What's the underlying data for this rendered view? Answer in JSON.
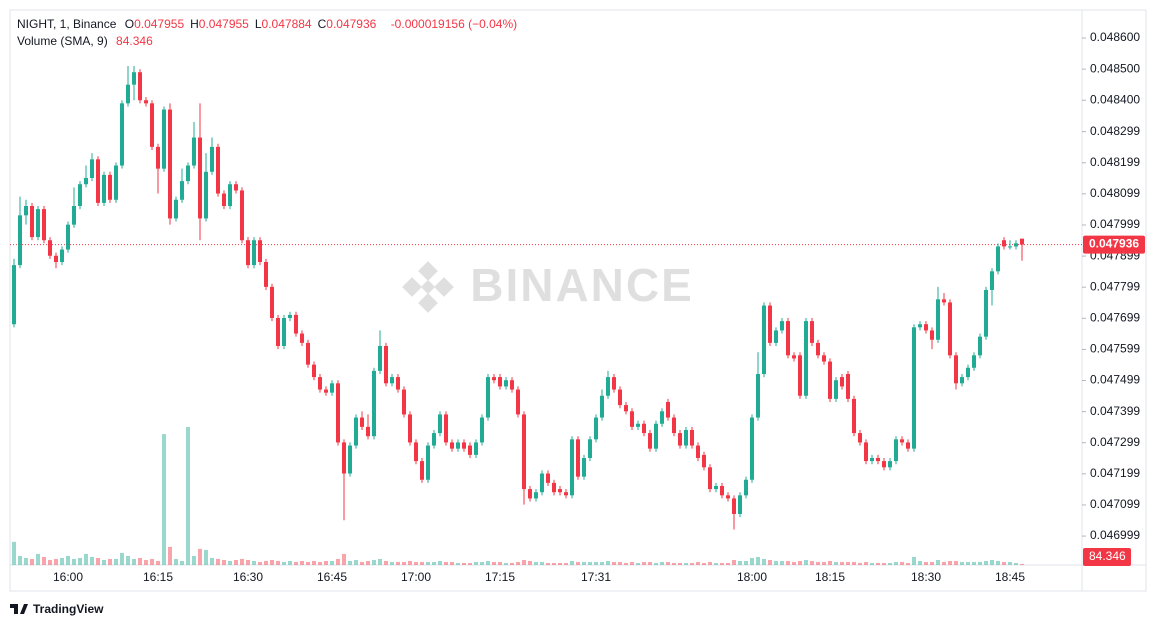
{
  "chart_data": {
    "type": "candlestick",
    "symbol": "NIGHT, 1, Binance",
    "ohlc_labels": [
      "O",
      "H",
      "L",
      "C"
    ],
    "change": "-0.000019156 (−0.04%)",
    "volume_label": "Volume (SMA, 9)",
    "volume_sma": 84.346,
    "watermark": "BINANCE",
    "brand": "TradingView",
    "up_color": "#22ab94",
    "down_color": "#f23645",
    "ylim": [
      0.046906,
      0.04869
    ],
    "yticks": [
      {
        "value": 0.0486,
        "label": "0.048600"
      },
      {
        "value": 0.0485,
        "label": "0.048500"
      },
      {
        "value": 0.0484,
        "label": "0.048400"
      },
      0.048299,
      0.048199,
      0.048099,
      0.047999,
      0.047899,
      0.047799,
      0.047699,
      0.047599,
      0.047499,
      0.047399,
      0.047299,
      0.047199,
      0.047099,
      0.046999
    ],
    "categories": [
      null,
      null,
      null,
      null,
      null,
      null,
      null,
      null,
      null,
      "16:00",
      null,
      null,
      null,
      null,
      null,
      null,
      null,
      null,
      null,
      null,
      null,
      null,
      null,
      null,
      "16:15",
      null,
      null,
      null,
      null,
      null,
      null,
      null,
      null,
      null,
      null,
      null,
      null,
      null,
      null,
      "16:30",
      null,
      null,
      null,
      null,
      null,
      null,
      null,
      null,
      null,
      null,
      null,
      null,
      null,
      "16:45",
      null,
      null,
      null,
      null,
      null,
      null,
      null,
      null,
      null,
      null,
      null,
      null,
      null,
      "17:00",
      null,
      null,
      null,
      null,
      null,
      null,
      null,
      null,
      null,
      null,
      null,
      null,
      null,
      "17:15",
      null,
      null,
      null,
      null,
      null,
      null,
      null,
      null,
      null,
      null,
      null,
      null,
      null,
      null,
      null,
      "17:31",
      null,
      null,
      null,
      null,
      null,
      null,
      null,
      null,
      null,
      null,
      null,
      null,
      null,
      null,
      null,
      null,
      null,
      null,
      null,
      null,
      null,
      null,
      null,
      null,
      null,
      "18:00",
      null,
      null,
      null,
      null,
      null,
      null,
      null,
      null,
      null,
      null,
      null,
      null,
      "18:15",
      null,
      null,
      null,
      null,
      null,
      null,
      null,
      null,
      null,
      null,
      null,
      null,
      null,
      null,
      null,
      "18:30",
      null,
      null,
      null,
      null,
      null,
      null,
      null,
      null,
      null,
      null,
      null,
      null,
      null,
      "18:45",
      null,
      null
    ],
    "ohlc": [
      [
        0.04768,
        0.04789,
        0.04767,
        0.04787
      ],
      [
        0.04787,
        0.04809,
        0.04786,
        0.04803
      ],
      [
        0.04803,
        0.04808,
        0.048,
        0.04806
      ],
      [
        0.04806,
        0.04807,
        0.04795,
        0.04796
      ],
      [
        0.04796,
        0.04806,
        0.04795,
        0.04805
      ],
      [
        0.04805,
        0.04806,
        0.04794,
        0.04795
      ],
      [
        0.04795,
        0.04796,
        0.04789,
        0.0479
      ],
      [
        0.0479,
        0.04791,
        0.04786,
        0.04788
      ],
      [
        0.04788,
        0.04793,
        0.04787,
        0.04792
      ],
      [
        0.04792,
        0.04801,
        0.04791,
        0.048
      ],
      [
        0.048,
        0.04812,
        0.04799,
        0.04806
      ],
      [
        0.04806,
        0.04814,
        0.04805,
        0.04813
      ],
      [
        0.04813,
        0.04819,
        0.04812,
        0.04815
      ],
      [
        0.04815,
        0.04823,
        0.04814,
        0.04821
      ],
      [
        0.04821,
        0.04822,
        0.04806,
        0.04807
      ],
      [
        0.04807,
        0.04817,
        0.04806,
        0.04816
      ],
      [
        0.04816,
        0.04817,
        0.04807,
        0.04808
      ],
      [
        0.04808,
        0.0482,
        0.04807,
        0.04819
      ],
      [
        0.04819,
        0.0484,
        0.04818,
        0.04839
      ],
      [
        0.04839,
        0.04851,
        0.04838,
        0.04845
      ],
      [
        0.04845,
        0.04851,
        0.0484,
        0.04849
      ],
      [
        0.04849,
        0.0485,
        0.04839,
        0.0484
      ],
      [
        0.0484,
        0.04841,
        0.04838,
        0.04839
      ],
      [
        0.04839,
        0.0484,
        0.04824,
        0.04825
      ],
      [
        0.04825,
        0.04826,
        0.0481,
        0.04818
      ],
      [
        0.04818,
        0.04838,
        0.04817,
        0.04837
      ],
      [
        0.04837,
        0.04839,
        0.048,
        0.04802
      ],
      [
        0.04802,
        0.04809,
        0.04801,
        0.04808
      ],
      [
        0.04808,
        0.04818,
        0.04807,
        0.04814
      ],
      [
        0.04814,
        0.0482,
        0.04813,
        0.04819
      ],
      [
        0.04819,
        0.04833,
        0.04818,
        0.04828
      ],
      [
        0.04828,
        0.04839,
        0.04795,
        0.04802
      ],
      [
        0.04802,
        0.04823,
        0.04801,
        0.04817
      ],
      [
        0.04817,
        0.04828,
        0.04816,
        0.04825
      ],
      [
        0.04825,
        0.04826,
        0.04809,
        0.0481
      ],
      [
        0.0481,
        0.04811,
        0.04805,
        0.04806
      ],
      [
        0.04806,
        0.04814,
        0.04805,
        0.04813
      ],
      [
        0.04813,
        0.04814,
        0.0481,
        0.04811
      ],
      [
        0.04811,
        0.04812,
        0.04794,
        0.04795
      ],
      [
        0.04795,
        0.04796,
        0.04786,
        0.04787
      ],
      [
        0.04787,
        0.04796,
        0.04786,
        0.04795
      ],
      [
        0.04795,
        0.04796,
        0.04787,
        0.04788
      ],
      [
        0.04788,
        0.04789,
        0.04779,
        0.0478
      ],
      [
        0.0478,
        0.04781,
        0.04769,
        0.0477
      ],
      [
        0.0477,
        0.04771,
        0.0476,
        0.04761
      ],
      [
        0.04761,
        0.04771,
        0.0476,
        0.0477
      ],
      [
        0.0477,
        0.04772,
        0.04769,
        0.04771
      ],
      [
        0.04771,
        0.04772,
        0.04764,
        0.04765
      ],
      [
        0.04765,
        0.04766,
        0.04761,
        0.04762
      ],
      [
        0.04762,
        0.04763,
        0.04754,
        0.04755
      ],
      [
        0.04755,
        0.04756,
        0.0475,
        0.04751
      ],
      [
        0.04751,
        0.04752,
        0.04746,
        0.04747
      ],
      [
        0.04747,
        0.04748,
        0.04745,
        0.04746
      ],
      [
        0.04746,
        0.0475,
        0.04745,
        0.04749
      ],
      [
        0.04749,
        0.0475,
        0.04729,
        0.0473
      ],
      [
        0.0473,
        0.04731,
        0.04705,
        0.0472
      ],
      [
        0.0472,
        0.0473,
        0.04719,
        0.04729
      ],
      [
        0.04729,
        0.04739,
        0.04728,
        0.04738
      ],
      [
        0.04738,
        0.0474,
        0.04734,
        0.04735
      ],
      [
        0.04735,
        0.04739,
        0.04731,
        0.04732
      ],
      [
        0.04732,
        0.04754,
        0.04731,
        0.04753
      ],
      [
        0.04753,
        0.04766,
        0.04752,
        0.04761
      ],
      [
        0.04761,
        0.04762,
        0.04748,
        0.04749
      ],
      [
        0.04749,
        0.04752,
        0.04748,
        0.04751
      ],
      [
        0.04751,
        0.04752,
        0.04746,
        0.04747
      ],
      [
        0.04747,
        0.04748,
        0.04738,
        0.04739
      ],
      [
        0.04739,
        0.0474,
        0.04729,
        0.0473
      ],
      [
        0.0473,
        0.04731,
        0.04723,
        0.04724
      ],
      [
        0.04724,
        0.04725,
        0.04717,
        0.04718
      ],
      [
        0.04718,
        0.0473,
        0.04717,
        0.04729
      ],
      [
        0.04729,
        0.04734,
        0.04728,
        0.04733
      ],
      [
        0.04733,
        0.0474,
        0.04732,
        0.04739
      ],
      [
        0.04739,
        0.0474,
        0.04729,
        0.0473
      ],
      [
        0.0473,
        0.04731,
        0.04727,
        0.04728
      ],
      [
        0.04728,
        0.04731,
        0.04727,
        0.0473
      ],
      [
        0.0473,
        0.04731,
        0.04727,
        0.04728
      ],
      [
        0.04729,
        0.0473,
        0.04725,
        0.04726
      ],
      [
        0.04726,
        0.04731,
        0.04725,
        0.0473
      ],
      [
        0.0473,
        0.04739,
        0.04729,
        0.04738
      ],
      [
        0.04738,
        0.04752,
        0.04737,
        0.04751
      ],
      [
        0.04751,
        0.04752,
        0.04749,
        0.0475
      ],
      [
        0.04751,
        0.04752,
        0.04747,
        0.04748
      ],
      [
        0.04748,
        0.04751,
        0.04747,
        0.0475
      ],
      [
        0.0475,
        0.04751,
        0.04746,
        0.04747
      ],
      [
        0.04747,
        0.04748,
        0.04738,
        0.04739
      ],
      [
        0.04739,
        0.0474,
        0.0471,
        0.04715
      ],
      [
        0.04715,
        0.04716,
        0.04711,
        0.04712
      ],
      [
        0.04712,
        0.04715,
        0.04711,
        0.04714
      ],
      [
        0.04714,
        0.04721,
        0.04713,
        0.0472
      ],
      [
        0.0472,
        0.04721,
        0.04716,
        0.04717
      ],
      [
        0.04717,
        0.04718,
        0.04713,
        0.04714
      ],
      [
        0.04715,
        0.04716,
        0.04713,
        0.04714
      ],
      [
        0.04714,
        0.04715,
        0.04712,
        0.04713
      ],
      [
        0.04713,
        0.04732,
        0.04712,
        0.04731
      ],
      [
        0.04731,
        0.04732,
        0.04718,
        0.04719
      ],
      [
        0.04719,
        0.04726,
        0.04718,
        0.04725
      ],
      [
        0.04725,
        0.04732,
        0.04724,
        0.04731
      ],
      [
        0.04731,
        0.04739,
        0.0473,
        0.04738
      ],
      [
        0.04738,
        0.04747,
        0.04737,
        0.04745
      ],
      [
        0.04745,
        0.04753,
        0.04744,
        0.04751
      ],
      [
        0.04751,
        0.04752,
        0.04746,
        0.04747
      ],
      [
        0.04747,
        0.04748,
        0.04741,
        0.04742
      ],
      [
        0.04742,
        0.04743,
        0.04739,
        0.0474
      ],
      [
        0.0474,
        0.04741,
        0.04734,
        0.04735
      ],
      [
        0.04735,
        0.04737,
        0.04734,
        0.04736
      ],
      [
        0.04736,
        0.04737,
        0.04732,
        0.04733
      ],
      [
        0.04733,
        0.04734,
        0.04727,
        0.04728
      ],
      [
        0.04728,
        0.04737,
        0.04727,
        0.04736
      ],
      [
        0.04736,
        0.04741,
        0.04735,
        0.0474
      ],
      [
        0.04743,
        0.04744,
        0.04737,
        0.04738
      ],
      [
        0.04738,
        0.04739,
        0.04732,
        0.04733
      ],
      [
        0.04733,
        0.04734,
        0.04728,
        0.04729
      ],
      [
        0.04729,
        0.04735,
        0.04728,
        0.04734
      ],
      [
        0.04734,
        0.04735,
        0.04728,
        0.04729
      ],
      [
        0.04729,
        0.0473,
        0.04724,
        0.04725
      ],
      [
        0.04726,
        0.04727,
        0.04721,
        0.04722
      ],
      [
        0.04722,
        0.04723,
        0.04714,
        0.04715
      ],
      [
        0.04715,
        0.04717,
        0.04714,
        0.04716
      ],
      [
        0.04716,
        0.04717,
        0.04712,
        0.04713
      ],
      [
        0.04713,
        0.04714,
        0.04711,
        0.04712
      ],
      [
        0.04712,
        0.04713,
        0.04702,
        0.04707
      ],
      [
        0.04707,
        0.04714,
        0.04706,
        0.04713
      ],
      [
        0.04713,
        0.04719,
        0.04712,
        0.04718
      ],
      [
        0.04718,
        0.04739,
        0.04717,
        0.04738
      ],
      [
        0.04738,
        0.04759,
        0.04737,
        0.04752
      ],
      [
        0.04752,
        0.04775,
        0.04751,
        0.04774
      ],
      [
        0.04774,
        0.04775,
        0.04761,
        0.04762
      ],
      [
        0.04762,
        0.04767,
        0.04761,
        0.04766
      ],
      [
        0.04766,
        0.0477,
        0.04765,
        0.04769
      ],
      [
        0.04769,
        0.0477,
        0.04757,
        0.04758
      ],
      [
        0.04758,
        0.04759,
        0.04756,
        0.04757
      ],
      [
        0.04758,
        0.04759,
        0.04744,
        0.04745
      ],
      [
        0.04745,
        0.0477,
        0.04744,
        0.04769
      ],
      [
        0.04769,
        0.0477,
        0.04761,
        0.04762
      ],
      [
        0.04762,
        0.04763,
        0.04757,
        0.04758
      ],
      [
        0.04758,
        0.04759,
        0.04755,
        0.04756
      ],
      [
        0.04756,
        0.04757,
        0.04743,
        0.04744
      ],
      [
        0.04744,
        0.04751,
        0.04743,
        0.0475
      ],
      [
        0.04751,
        0.04752,
        0.04747,
        0.04748
      ],
      [
        0.04752,
        0.04753,
        0.04743,
        0.04744
      ],
      [
        0.04744,
        0.04745,
        0.04732,
        0.04733
      ],
      [
        0.04733,
        0.04734,
        0.04729,
        0.0473
      ],
      [
        0.0473,
        0.04731,
        0.04723,
        0.04724
      ],
      [
        0.04724,
        0.04726,
        0.04723,
        0.04725
      ],
      [
        0.04725,
        0.04726,
        0.04723,
        0.04724
      ],
      [
        0.04724,
        0.04725,
        0.04721,
        0.04722
      ],
      [
        0.04722,
        0.04725,
        0.04721,
        0.04724
      ],
      [
        0.04724,
        0.04732,
        0.04723,
        0.04731
      ],
      [
        0.04731,
        0.04732,
        0.04729,
        0.0473
      ],
      [
        0.0473,
        0.04731,
        0.04727,
        0.04728
      ],
      [
        0.04728,
        0.04768,
        0.04727,
        0.04767
      ],
      [
        0.04767,
        0.04769,
        0.04766,
        0.04768
      ],
      [
        0.04768,
        0.04769,
        0.04765,
        0.04766
      ],
      [
        0.04766,
        0.04767,
        0.0476,
        0.04763
      ],
      [
        0.04763,
        0.0478,
        0.04762,
        0.04776
      ],
      [
        0.04776,
        0.04778,
        0.04774,
        0.04775
      ],
      [
        0.04775,
        0.04776,
        0.04757,
        0.04758
      ],
      [
        0.04758,
        0.04759,
        0.04747,
        0.04749
      ],
      [
        0.04749,
        0.04752,
        0.04748,
        0.04751
      ],
      [
        0.04751,
        0.04755,
        0.0475,
        0.04754
      ],
      [
        0.04754,
        0.04759,
        0.04753,
        0.04758
      ],
      [
        0.04758,
        0.04765,
        0.04757,
        0.04764
      ],
      [
        0.04764,
        0.0478,
        0.04763,
        0.04779
      ],
      [
        0.04779,
        0.04786,
        0.04774,
        0.04785
      ],
      [
        0.04785,
        0.04794,
        0.04784,
        0.04793
      ],
      [
        0.04795,
        0.04796,
        0.04792,
        0.04793
      ],
      [
        0.04793,
        0.04795,
        0.04792,
        0.04793
      ],
      [
        0.04793,
        0.04795,
        0.04792,
        0.04794
      ],
      [
        0.047955,
        0.047955,
        0.047884,
        0.047936
      ]
    ],
    "volumes": [
      230,
      90,
      70,
      60,
      110,
      80,
      50,
      60,
      70,
      90,
      60,
      70,
      110,
      80,
      70,
      50,
      60,
      60,
      120,
      90,
      60,
      70,
      50,
      60,
      40,
      1300,
      180,
      60,
      40,
      1370,
      90,
      160,
      150,
      70,
      60,
      50,
      40,
      50,
      60,
      50,
      40,
      30,
      40,
      50,
      40,
      30,
      40,
      30,
      40,
      30,
      40,
      30,
      40,
      40,
      60,
      110,
      40,
      50,
      30,
      40,
      50,
      60,
      40,
      30,
      30,
      30,
      40,
      30,
      30,
      30,
      30,
      40,
      30,
      30,
      20,
      20,
      20,
      30,
      30,
      40,
      30,
      30,
      20,
      20,
      30,
      50,
      40,
      30,
      30,
      20,
      20,
      20,
      20,
      40,
      30,
      30,
      30,
      30,
      30,
      40,
      30,
      30,
      20,
      30,
      20,
      30,
      30,
      20,
      30,
      30,
      20,
      20,
      20,
      20,
      30,
      20,
      30,
      20,
      20,
      20,
      50,
      40,
      40,
      70,
      80,
      60,
      50,
      40,
      40,
      40,
      30,
      40,
      50,
      40,
      30,
      30,
      40,
      30,
      30,
      30,
      30,
      20,
      30,
      20,
      20,
      20,
      20,
      30,
      30,
      20,
      80,
      40,
      30,
      30,
      50,
      30,
      40,
      40,
      30,
      30,
      30,
      30,
      40,
      50,
      40,
      30,
      30,
      20,
      10
    ]
  }
}
